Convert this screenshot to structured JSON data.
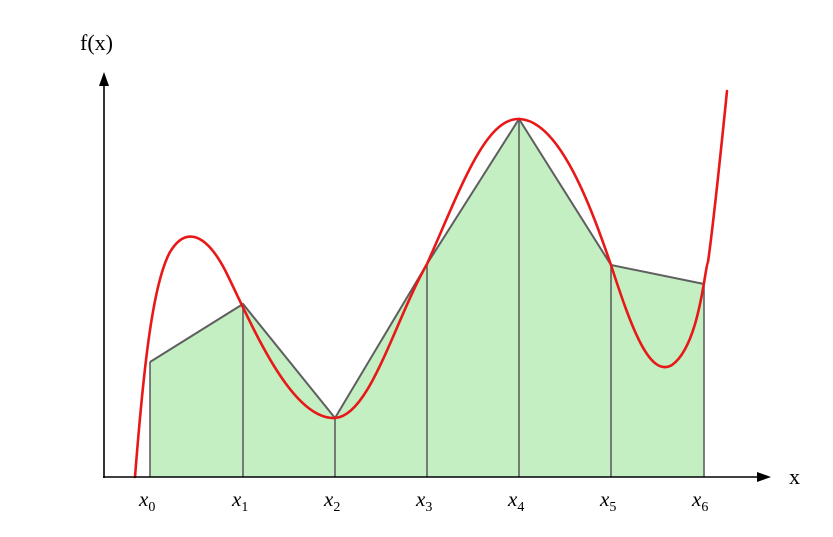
{
  "diagram": {
    "y_axis_label": "f(x)",
    "x_axis_label": "x",
    "colors": {
      "axis": "#000000",
      "curve": "#e81818",
      "fill": "#c3efc3",
      "trapezoid_edge": "#5f5f5f"
    },
    "ticks": [
      {
        "base": "x",
        "sub": "0"
      },
      {
        "base": "x",
        "sub": "1"
      },
      {
        "base": "x",
        "sub": "2"
      },
      {
        "base": "x",
        "sub": "3"
      },
      {
        "base": "x",
        "sub": "4"
      },
      {
        "base": "x",
        "sub": "5"
      },
      {
        "base": "x",
        "sub": "6"
      }
    ]
  }
}
